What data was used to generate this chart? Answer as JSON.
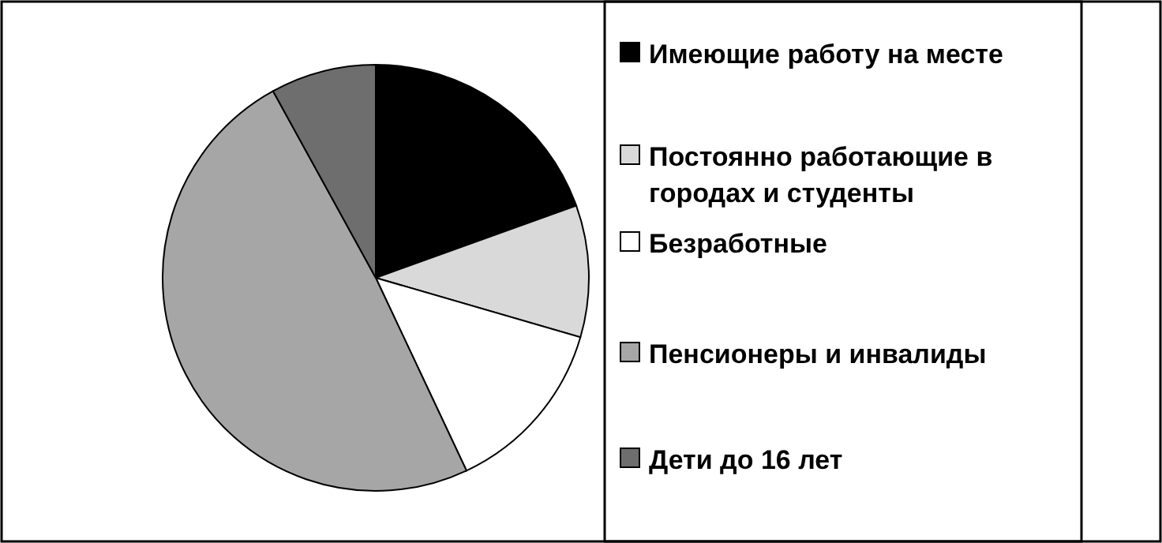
{
  "chart_data": {
    "type": "pie",
    "categories": [
      "Имеющие работу на месте",
      "Постоянно работающие в городах и студенты",
      "Безработные",
      "Пенсионеры и инвалиды",
      "Дети до 16 лет"
    ],
    "values": [
      19.5,
      10,
      13.5,
      49,
      8
    ],
    "colors": [
      "#000000",
      "#d9d9d9",
      "#ffffff",
      "#a6a6a6",
      "#6e6e6e"
    ],
    "legend": "right"
  }
}
